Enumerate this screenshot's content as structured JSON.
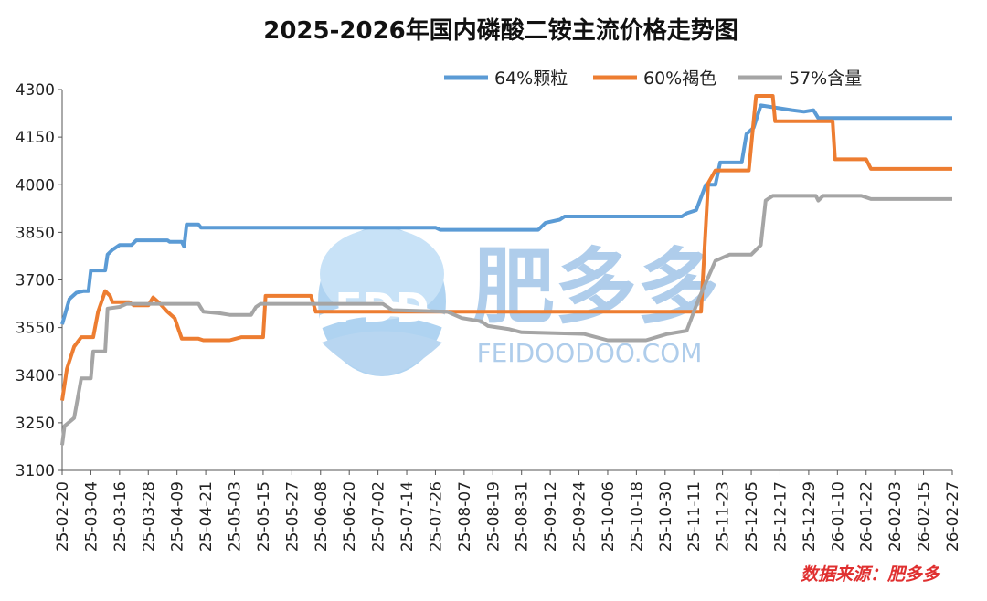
{
  "chart_data": {
    "type": "line",
    "title": "2025-2026年国内磷酸二铵主流价格走势图",
    "source_note": "数据来源：肥多多",
    "watermark": {
      "logo_text": "FDD",
      "brand_text": "肥多多",
      "url_text": "FEIDOODOO.COM"
    },
    "ylim": [
      3100,
      4300
    ],
    "yticks": [
      3100,
      3250,
      3400,
      3550,
      3700,
      3850,
      4000,
      4150,
      4300
    ],
    "x_range": [
      "25-02-20",
      "26-02-27"
    ],
    "xticks": [
      "25-02-20",
      "25-03-04",
      "25-03-16",
      "25-03-28",
      "25-04-09",
      "25-04-21",
      "25-05-03",
      "25-05-15",
      "25-05-27",
      "25-06-08",
      "25-06-20",
      "25-07-02",
      "25-07-14",
      "25-07-26",
      "25-08-07",
      "25-08-19",
      "25-08-31",
      "25-09-12",
      "25-09-24",
      "25-10-06",
      "25-10-18",
      "25-10-30",
      "25-11-11",
      "25-11-23",
      "25-12-05",
      "25-12-17",
      "25-12-29",
      "26-01-10",
      "26-01-22",
      "26-02-03",
      "26-02-15",
      "26-02-27"
    ],
    "legend_position": "top-right",
    "grid": false,
    "series": [
      {
        "name": "64%颗粒",
        "color": "#5b9bd5",
        "points": [
          [
            "25-02-20",
            3560
          ],
          [
            "25-02-23",
            3640
          ],
          [
            "25-02-26",
            3660
          ],
          [
            "25-03-01",
            3665
          ],
          [
            "25-03-03",
            3665
          ],
          [
            "25-03-04",
            3730
          ],
          [
            "25-03-10",
            3730
          ],
          [
            "25-03-11",
            3780
          ],
          [
            "25-03-13",
            3795
          ],
          [
            "25-03-16",
            3810
          ],
          [
            "25-03-21",
            3810
          ],
          [
            "25-03-23",
            3825
          ],
          [
            "25-04-05",
            3825
          ],
          [
            "25-04-06",
            3820
          ],
          [
            "25-04-11",
            3820
          ],
          [
            "25-04-12",
            3805
          ],
          [
            "25-04-13",
            3875
          ],
          [
            "25-04-18",
            3875
          ],
          [
            "25-04-19",
            3865
          ],
          [
            "25-07-26",
            3865
          ],
          [
            "25-07-28",
            3858
          ],
          [
            "25-09-07",
            3858
          ],
          [
            "25-09-10",
            3880
          ],
          [
            "25-09-16",
            3890
          ],
          [
            "25-09-18",
            3900
          ],
          [
            "25-11-06",
            3900
          ],
          [
            "25-11-08",
            3910
          ],
          [
            "25-11-12",
            3920
          ],
          [
            "25-11-16",
            4000
          ],
          [
            "25-11-20",
            4000
          ],
          [
            "25-11-22",
            4070
          ],
          [
            "25-12-01",
            4070
          ],
          [
            "25-12-03",
            4160
          ],
          [
            "25-12-06",
            4180
          ],
          [
            "25-12-09",
            4250
          ],
          [
            "25-12-22",
            4235
          ],
          [
            "25-12-27",
            4230
          ],
          [
            "25-12-31",
            4235
          ],
          [
            "26-01-02",
            4210
          ],
          [
            "26-02-27",
            4210
          ]
        ]
      },
      {
        "name": "60%褐色",
        "color": "#ed7d31",
        "points": [
          [
            "25-02-20",
            3320
          ],
          [
            "25-02-22",
            3420
          ],
          [
            "25-02-25",
            3490
          ],
          [
            "25-02-28",
            3520
          ],
          [
            "25-03-05",
            3520
          ],
          [
            "25-03-07",
            3600
          ],
          [
            "25-03-10",
            3665
          ],
          [
            "25-03-12",
            3650
          ],
          [
            "25-03-13",
            3630
          ],
          [
            "25-03-20",
            3630
          ],
          [
            "25-03-22",
            3620
          ],
          [
            "25-03-28",
            3620
          ],
          [
            "25-03-30",
            3645
          ],
          [
            "25-04-02",
            3625
          ],
          [
            "25-04-05",
            3600
          ],
          [
            "25-04-08",
            3580
          ],
          [
            "25-04-11",
            3515
          ],
          [
            "25-04-18",
            3515
          ],
          [
            "25-04-20",
            3510
          ],
          [
            "25-05-01",
            3510
          ],
          [
            "25-05-06",
            3520
          ],
          [
            "25-05-15",
            3520
          ],
          [
            "25-05-16",
            3650
          ],
          [
            "25-06-04",
            3650
          ],
          [
            "25-06-06",
            3600
          ],
          [
            "25-11-14",
            3600
          ],
          [
            "25-11-17",
            4005
          ],
          [
            "25-11-20",
            4045
          ],
          [
            "25-12-04",
            4045
          ],
          [
            "25-12-07",
            4280
          ],
          [
            "25-12-14",
            4280
          ],
          [
            "25-12-15",
            4200
          ],
          [
            "26-01-08",
            4200
          ],
          [
            "26-01-09",
            4080
          ],
          [
            "26-01-22",
            4080
          ],
          [
            "26-01-24",
            4050
          ],
          [
            "26-02-27",
            4050
          ]
        ]
      },
      {
        "name": "57%含量",
        "color": "#a5a5a5",
        "points": [
          [
            "25-02-20",
            3180
          ],
          [
            "25-02-21",
            3240
          ],
          [
            "25-02-25",
            3265
          ],
          [
            "25-02-28",
            3390
          ],
          [
            "25-03-04",
            3390
          ],
          [
            "25-03-05",
            3475
          ],
          [
            "25-03-10",
            3475
          ],
          [
            "25-03-11",
            3610
          ],
          [
            "25-03-16",
            3615
          ],
          [
            "25-03-19",
            3625
          ],
          [
            "25-04-18",
            3625
          ],
          [
            "25-04-20",
            3600
          ],
          [
            "25-04-27",
            3595
          ],
          [
            "25-05-01",
            3590
          ],
          [
            "25-05-10",
            3590
          ],
          [
            "25-05-12",
            3615
          ],
          [
            "25-05-14",
            3625
          ],
          [
            "25-07-04",
            3625
          ],
          [
            "25-07-08",
            3605
          ],
          [
            "25-07-31",
            3600
          ],
          [
            "25-08-06",
            3580
          ],
          [
            "25-08-14",
            3570
          ],
          [
            "25-08-17",
            3555
          ],
          [
            "25-08-26",
            3545
          ],
          [
            "25-08-31",
            3535
          ],
          [
            "25-09-26",
            3530
          ],
          [
            "25-10-06",
            3510
          ],
          [
            "25-10-22",
            3510
          ],
          [
            "25-10-31",
            3530
          ],
          [
            "25-11-08",
            3540
          ],
          [
            "25-11-13",
            3640
          ],
          [
            "25-11-20",
            3760
          ],
          [
            "25-11-26",
            3780
          ],
          [
            "25-12-05",
            3780
          ],
          [
            "25-12-09",
            3810
          ],
          [
            "25-12-11",
            3950
          ],
          [
            "25-12-14",
            3965
          ],
          [
            "26-01-01",
            3965
          ],
          [
            "26-01-02",
            3950
          ],
          [
            "26-01-04",
            3965
          ],
          [
            "26-01-20",
            3965
          ],
          [
            "26-01-24",
            3955
          ],
          [
            "26-02-27",
            3955
          ]
        ]
      }
    ]
  }
}
